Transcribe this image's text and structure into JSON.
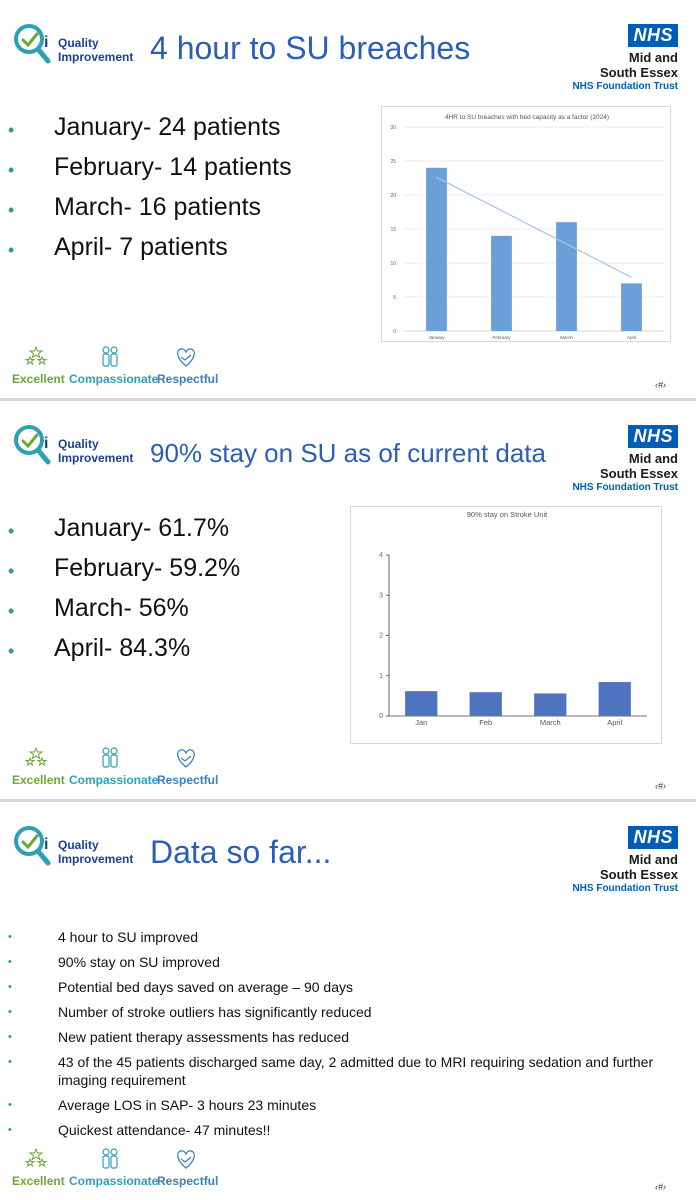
{
  "branding": {
    "qi_line1": "Quality",
    "qi_line2": "Improvement",
    "nhs_badge": "NHS",
    "nhs_name_line1": "Mid and",
    "nhs_name_line2": "South Essex",
    "nhs_trust": "NHS Foundation Trust",
    "values": [
      "Excellent",
      "Compassionate",
      "Respectful"
    ],
    "colors": {
      "nhs_blue": "#005eb8",
      "title_blue": "#2b5fb5",
      "bullet_teal": "#2a9d8f",
      "excellent_green": "#6aa83a",
      "compassionate_teal": "#2f9fb5",
      "respectful_blue": "#3a7fc4"
    }
  },
  "slides": [
    {
      "title": "4 hour to SU breaches",
      "bullets": [
        "January- 24 patients",
        "February- 14 patients",
        "March- 16 patients",
        "April- 7 patients"
      ]
    },
    {
      "title": "90% stay on SU as of current data",
      "bullets": [
        "January- 61.7%",
        "February- 59.2%",
        "March- 56%",
        "April- 84.3%"
      ]
    },
    {
      "title": "Data so far...",
      "bullets": [
        "4 hour to SU improved",
        "90% stay on SU improved",
        "Potential bed days saved on average – 90 days",
        "Number of stroke outliers has significantly reduced",
        "New patient therapy assessments has reduced",
        "43 of the 45 patients discharged same day, 2 admitted due to MRI requiring sedation and further imaging requirement",
        "Average LOS in SAP- 3 hours 23 minutes",
        "Quickest attendance- 47 minutes!!"
      ]
    }
  ],
  "chart_data": [
    {
      "type": "bar",
      "title": "4HR to SU breaches with bed capacity as a factor (2024)",
      "categories": [
        "January",
        "February",
        "March",
        "April"
      ],
      "values": [
        24,
        14,
        16,
        7
      ],
      "trendline": true,
      "ylim": [
        0,
        30
      ],
      "yticks": [
        "0",
        "5",
        "10",
        "15",
        "20",
        "25",
        "30"
      ],
      "grid": true,
      "bar_color": "#6a9fd8"
    },
    {
      "type": "bar",
      "title": "90% stay on Stroke Unit",
      "categories": [
        "Jan",
        "Feb",
        "March",
        "April"
      ],
      "values": [
        0.617,
        0.592,
        0.56,
        0.843
      ],
      "ylim": [
        0,
        4
      ],
      "yticks": [
        "0",
        "1",
        "2",
        "3",
        "4"
      ],
      "grid": false,
      "bar_color": "#4f73bf"
    }
  ]
}
